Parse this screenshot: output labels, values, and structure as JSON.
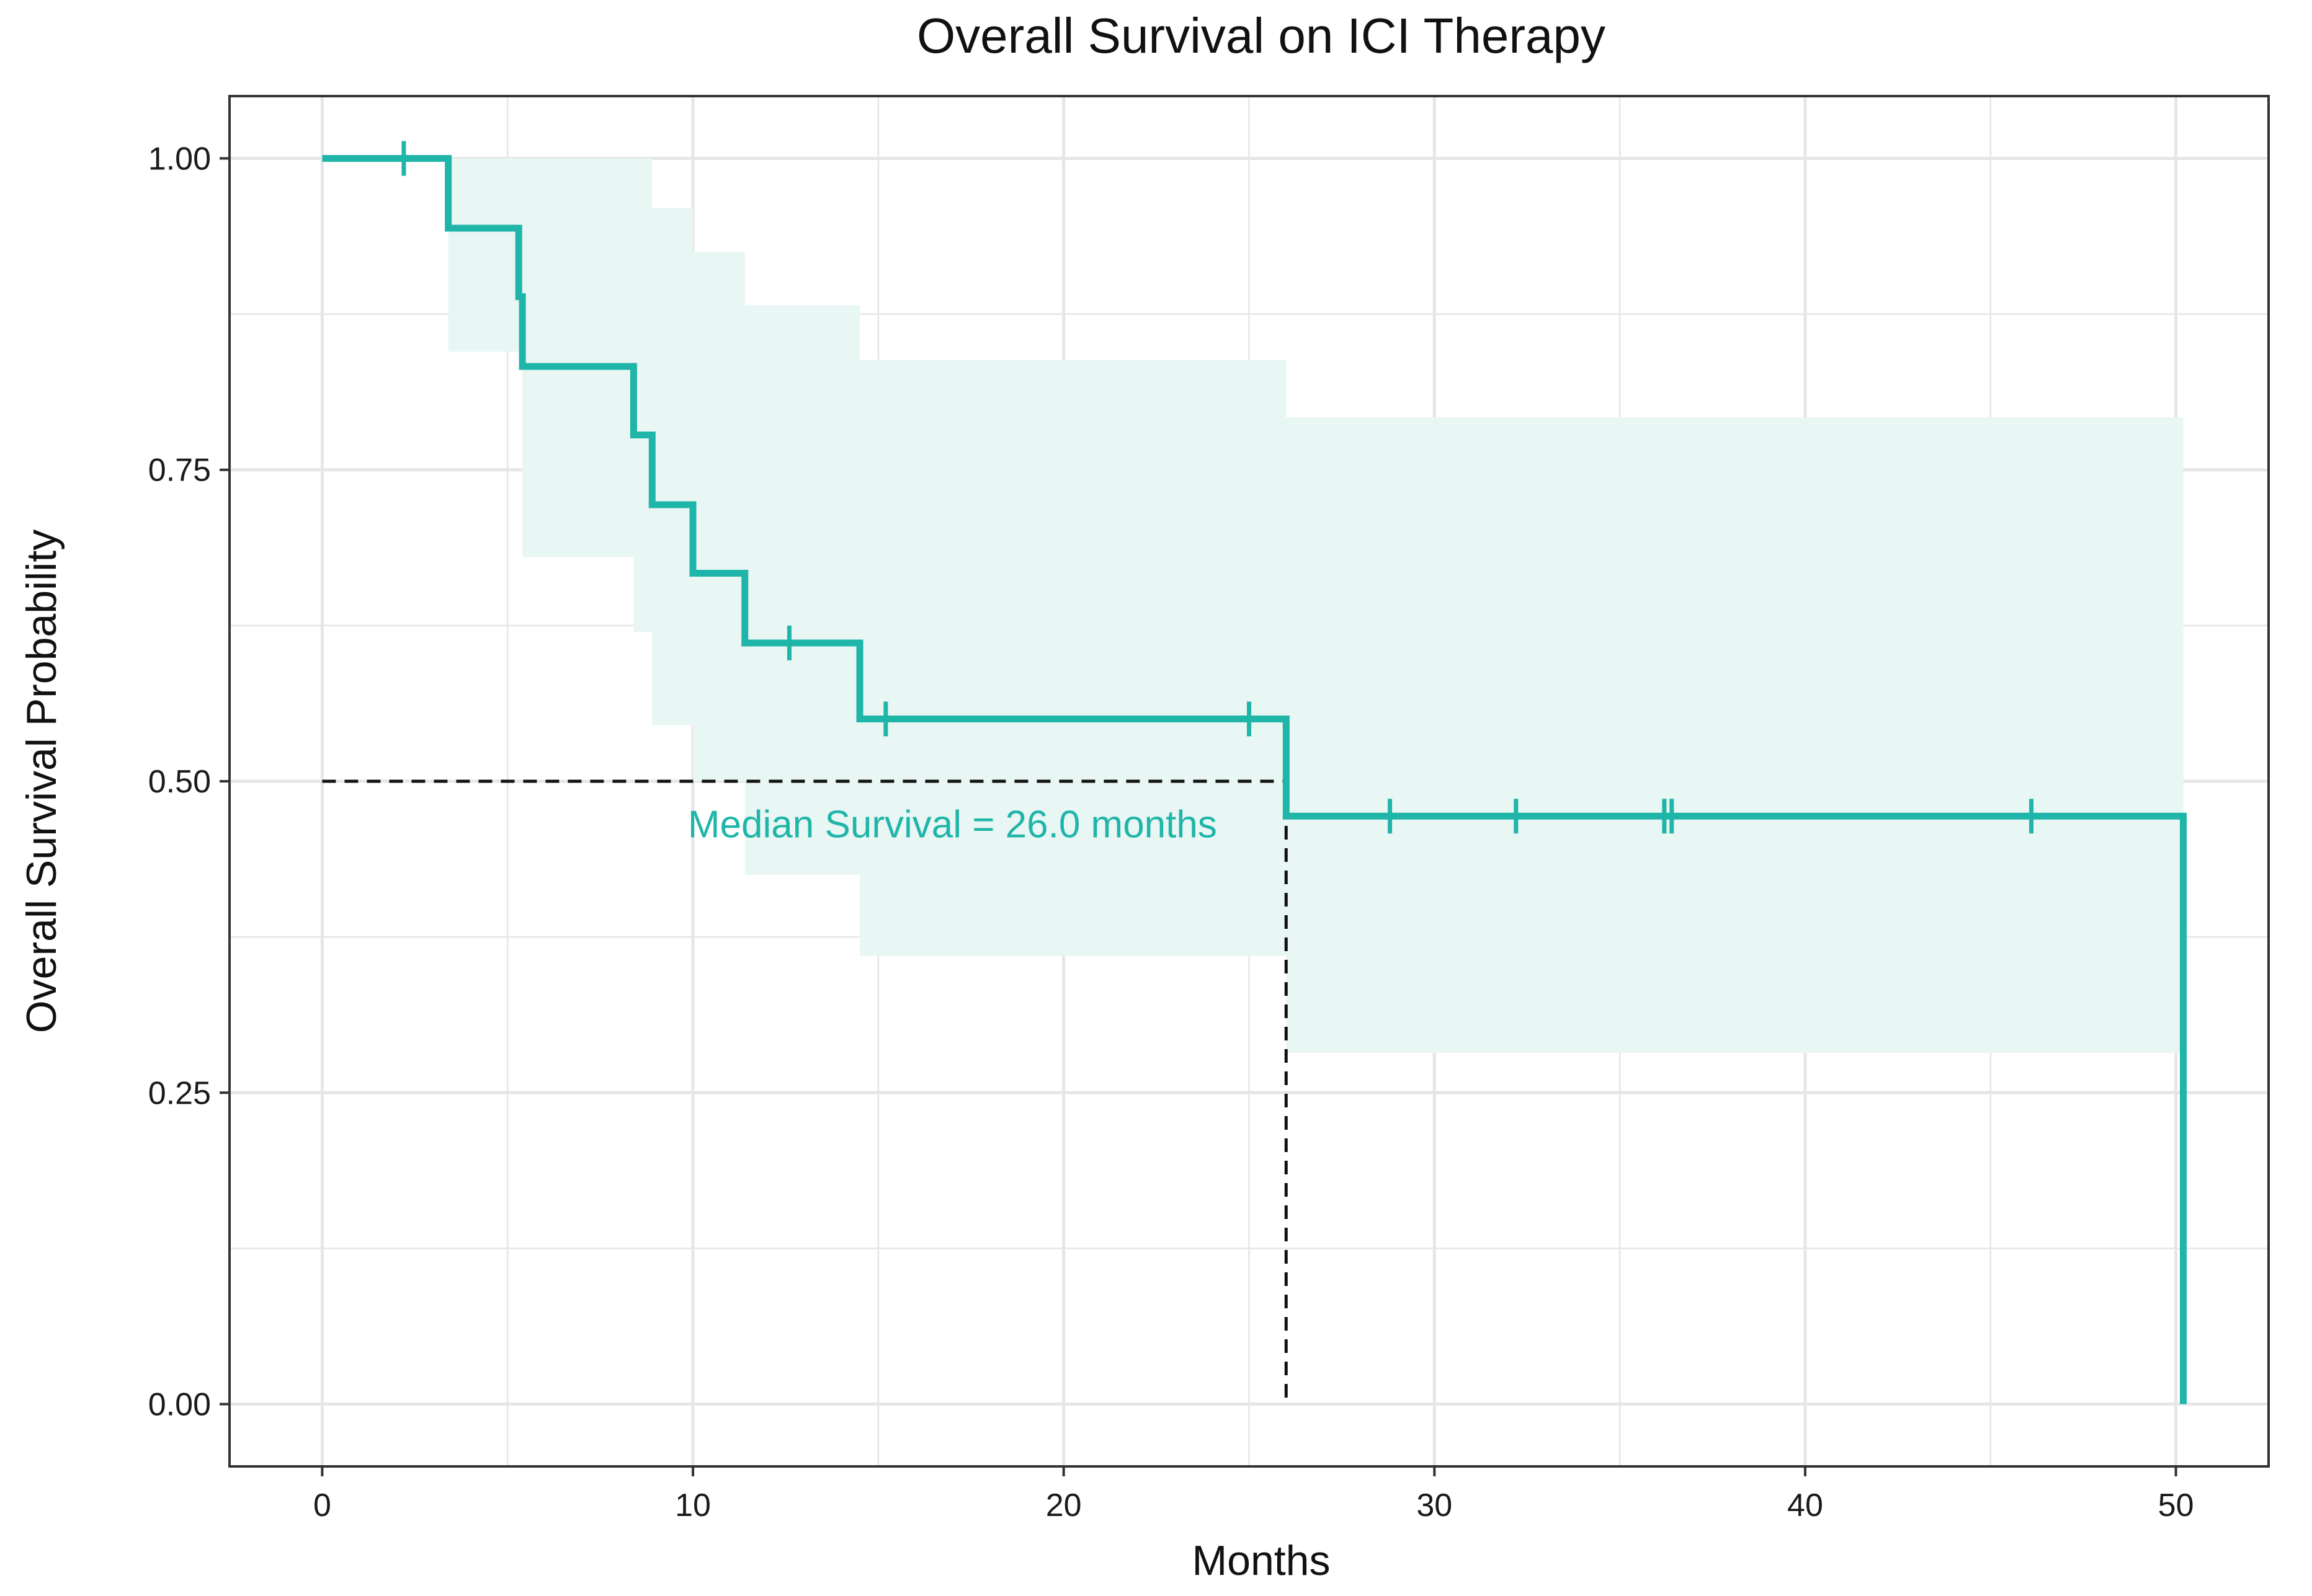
{
  "chart_data": {
    "type": "line",
    "subtype": "kaplan-meier-step",
    "title": "Overall Survival on ICI Therapy",
    "xlabel": "Months",
    "ylabel": "Overall Survival Probability",
    "xlim": [
      -2.5,
      52.5
    ],
    "ylim": [
      -0.05,
      1.05
    ],
    "x_ticks": [
      0,
      10,
      20,
      30,
      40,
      50
    ],
    "x_tick_labels": [
      "0",
      "10",
      "20",
      "30",
      "40",
      "50"
    ],
    "y_ticks": [
      0,
      0.25,
      0.5,
      0.75,
      1.0
    ],
    "y_tick_labels": [
      "0.00",
      "0.25",
      "0.50",
      "0.75",
      "1.00"
    ],
    "x_minor_ticks": [
      5,
      15,
      25,
      35,
      45
    ],
    "y_minor_ticks": [
      0.125,
      0.375,
      0.625,
      0.875
    ],
    "grid": true,
    "colors": {
      "series": "#1fb5a8",
      "ci_band": "#e8f6f4",
      "grid": "#e6e6e6",
      "panel_border": "#333333",
      "reference": "#111111"
    },
    "series": [
      {
        "name": "Overall survival",
        "steps": [
          {
            "time": 0.0,
            "survival": 1.0
          },
          {
            "time": 3.4,
            "survival": 0.944
          },
          {
            "time": 5.3,
            "survival": 0.889
          },
          {
            "time": 5.4,
            "survival": 0.833
          },
          {
            "time": 8.4,
            "survival": 0.778
          },
          {
            "time": 8.9,
            "survival": 0.722
          },
          {
            "time": 10.0,
            "survival": 0.667
          },
          {
            "time": 11.4,
            "survival": 0.611
          },
          {
            "time": 14.5,
            "survival": 0.55
          },
          {
            "time": 26.0,
            "survival": 0.472
          },
          {
            "time": 50.2,
            "survival": 0.0
          }
        ],
        "censor_times": [
          2.2,
          12.6,
          15.2,
          25.0,
          28.8,
          32.2,
          36.2,
          36.4,
          46.1
        ],
        "ci": [
          {
            "time": 0.0,
            "lower": 1.0,
            "upper": 1.0
          },
          {
            "time": 3.4,
            "lower": 0.845,
            "upper": 1.0
          },
          {
            "time": 5.3,
            "lower": 0.845,
            "upper": 1.0
          },
          {
            "time": 5.4,
            "lower": 0.68,
            "upper": 1.0
          },
          {
            "time": 8.4,
            "lower": 0.62,
            "upper": 1.0
          },
          {
            "time": 8.9,
            "lower": 0.545,
            "upper": 0.96
          },
          {
            "time": 10.0,
            "lower": 0.5,
            "upper": 0.925
          },
          {
            "time": 11.4,
            "lower": 0.425,
            "upper": 0.882
          },
          {
            "time": 14.5,
            "lower": 0.36,
            "upper": 0.838
          },
          {
            "time": 26.0,
            "lower": 0.282,
            "upper": 0.792
          },
          {
            "time": 50.2,
            "lower": 0.282,
            "upper": 0.792
          }
        ]
      }
    ],
    "median_survival": {
      "x": 26.0,
      "y": 0.5
    },
    "annotations": [
      {
        "text": "Median Survival = 26.0 months",
        "x": 17.0,
        "y": 0.455
      }
    ]
  }
}
